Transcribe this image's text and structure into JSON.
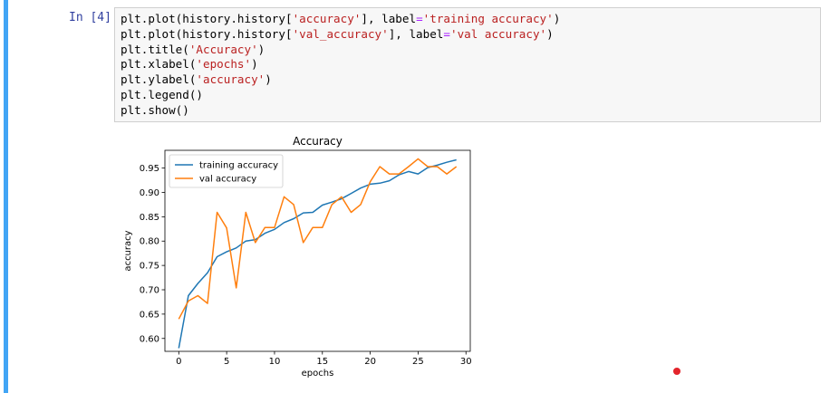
{
  "cell": {
    "prompt": "In [4]:",
    "code_lines": [
      [
        {
          "t": "plt.plot(history.history["
        },
        {
          "t": "'accuracy'",
          "c": "str"
        },
        {
          "t": "], label"
        },
        {
          "t": "=",
          "c": "op"
        },
        {
          "t": "'training accuracy'",
          "c": "str"
        },
        {
          "t": ")"
        }
      ],
      [
        {
          "t": "plt.plot(history.history["
        },
        {
          "t": "'val_accuracy'",
          "c": "str"
        },
        {
          "t": "], label"
        },
        {
          "t": "=",
          "c": "op"
        },
        {
          "t": "'val accuracy'",
          "c": "str"
        },
        {
          "t": ")"
        }
      ],
      [
        {
          "t": "plt.title("
        },
        {
          "t": "'Accuracy'",
          "c": "str"
        },
        {
          "t": ")"
        }
      ],
      [
        {
          "t": "plt.xlabel("
        },
        {
          "t": "'epochs'",
          "c": "str"
        },
        {
          "t": ")"
        }
      ],
      [
        {
          "t": "plt.ylabel("
        },
        {
          "t": "'accuracy'",
          "c": "str"
        },
        {
          "t": ")"
        }
      ],
      [
        {
          "t": "plt.legend()"
        }
      ],
      [
        {
          "t": "plt.show()"
        }
      ]
    ]
  },
  "chart_data": {
    "type": "line",
    "title": "Accuracy",
    "xlabel": "epochs",
    "ylabel": "accuracy",
    "xlim": [
      -1.45,
      30.45
    ],
    "ylim": [
      0.5735,
      0.9865
    ],
    "xticks": [
      0,
      5,
      10,
      15,
      20,
      25,
      30
    ],
    "yticks": [
      0.6,
      0.65,
      0.7,
      0.75,
      0.8,
      0.85,
      0.9,
      0.95
    ],
    "ytick_labels": [
      "0.60",
      "0.65",
      "0.70",
      "0.75",
      "0.80",
      "0.85",
      "0.90",
      "0.95"
    ],
    "legend_position": "upper left",
    "x": [
      0,
      1,
      2,
      3,
      4,
      5,
      6,
      7,
      8,
      9,
      10,
      11,
      12,
      13,
      14,
      15,
      16,
      17,
      18,
      19,
      20,
      21,
      22,
      23,
      24,
      25,
      26,
      27,
      28,
      29
    ],
    "series": [
      {
        "name": "training accuracy",
        "color": "#1f77b4",
        "values": [
          0.58,
          0.688,
          0.713,
          0.735,
          0.768,
          0.778,
          0.786,
          0.8,
          0.803,
          0.816,
          0.824,
          0.838,
          0.846,
          0.858,
          0.859,
          0.874,
          0.88,
          0.887,
          0.898,
          0.909,
          0.917,
          0.919,
          0.924,
          0.936,
          0.943,
          0.938,
          0.951,
          0.956,
          0.962,
          0.967
        ]
      },
      {
        "name": "val accuracy",
        "color": "#ff7f0e",
        "values": [
          0.64,
          0.677,
          0.688,
          0.672,
          0.859,
          0.827,
          0.704,
          0.859,
          0.797,
          0.828,
          0.828,
          0.891,
          0.875,
          0.797,
          0.828,
          0.828,
          0.875,
          0.891,
          0.859,
          0.875,
          0.922,
          0.953,
          0.938,
          0.938,
          0.953,
          0.969,
          0.953,
          0.953,
          0.938,
          0.953
        ]
      }
    ]
  },
  "indicator": {
    "color": "#e3242b"
  }
}
